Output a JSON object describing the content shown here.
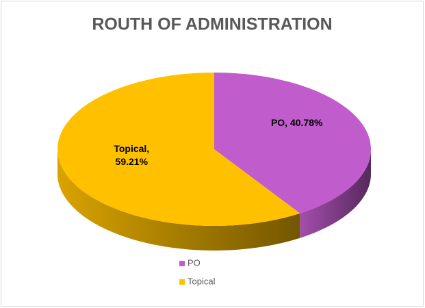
{
  "chart_data": {
    "type": "pie",
    "title": "ROUTH OF ADMINISTRATION",
    "categories": [
      "PO",
      "Topical"
    ],
    "values": [
      40.78,
      59.21
    ],
    "value_labels": [
      "PO, 40.78%",
      "Topical, 59.21%"
    ],
    "colors": [
      "#c05ccb",
      "#ffc000"
    ],
    "legend": "bottom"
  }
}
